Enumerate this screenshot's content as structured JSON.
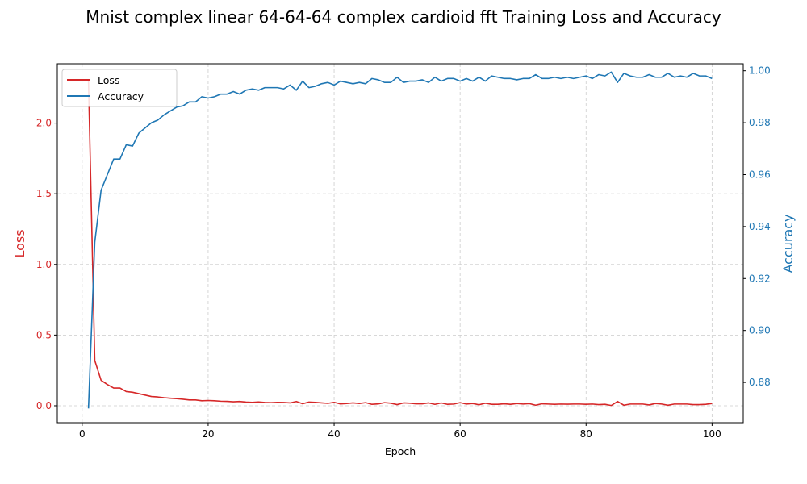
{
  "chart_data": {
    "type": "line",
    "title": "Mnist complex linear 64-64-64 complex cardioid fft Training Loss and Accuracy",
    "xlabel": "Epoch",
    "ylabel_left": "Loss",
    "ylabel_right": "Accuracy",
    "xlim": [
      -3.95,
      104.95
    ],
    "ylim_left": [
      -0.12,
      2.42
    ],
    "ylim_right": [
      0.8645,
      1.0027
    ],
    "x_ticks": [
      0,
      20,
      40,
      60,
      80,
      100
    ],
    "y_ticks_left": [
      0.0,
      0.5,
      1.0,
      1.5,
      2.0
    ],
    "y_ticks_right": [
      0.88,
      0.9,
      0.92,
      0.94,
      0.96,
      0.98,
      1.0
    ],
    "grid": true,
    "legend_position": "upper-left",
    "colors": {
      "loss": "#d62728",
      "accuracy": "#1f77b4",
      "grid": "#cccccc"
    },
    "series": [
      {
        "name": "Loss",
        "axis": "left",
        "values": [
          2.3,
          0.32,
          0.18,
          0.15,
          0.125,
          0.125,
          0.1,
          0.095,
          0.085,
          0.075,
          0.065,
          0.062,
          0.057,
          0.053,
          0.05,
          0.046,
          0.041,
          0.041,
          0.035,
          0.037,
          0.035,
          0.032,
          0.031,
          0.028,
          0.03,
          0.026,
          0.024,
          0.027,
          0.023,
          0.022,
          0.024,
          0.023,
          0.02,
          0.03,
          0.014,
          0.026,
          0.024,
          0.02,
          0.017,
          0.024,
          0.013,
          0.016,
          0.02,
          0.016,
          0.022,
          0.01,
          0.013,
          0.022,
          0.018,
          0.008,
          0.02,
          0.018,
          0.014,
          0.014,
          0.02,
          0.01,
          0.02,
          0.01,
          0.012,
          0.022,
          0.012,
          0.016,
          0.007,
          0.018,
          0.01,
          0.01,
          0.014,
          0.01,
          0.016,
          0.012,
          0.015,
          0.004,
          0.014,
          0.012,
          0.01,
          0.012,
          0.011,
          0.012,
          0.012,
          0.01,
          0.012,
          0.008,
          0.01,
          0.002,
          0.03,
          0.004,
          0.012,
          0.012,
          0.012,
          0.006,
          0.016,
          0.012,
          0.004,
          0.012,
          0.012,
          0.012,
          0.008,
          0.008,
          0.01,
          0.016
        ]
      },
      {
        "name": "Accuracy",
        "axis": "right",
        "values": [
          0.87,
          0.934,
          0.954,
          0.96,
          0.966,
          0.966,
          0.9715,
          0.971,
          0.976,
          0.978,
          0.98,
          0.981,
          0.983,
          0.9845,
          0.986,
          0.9865,
          0.988,
          0.988,
          0.99,
          0.9895,
          0.99,
          0.991,
          0.991,
          0.992,
          0.991,
          0.9925,
          0.993,
          0.9925,
          0.9935,
          0.9935,
          0.9935,
          0.993,
          0.9945,
          0.9925,
          0.996,
          0.9935,
          0.994,
          0.995,
          0.9955,
          0.9945,
          0.996,
          0.9955,
          0.995,
          0.9955,
          0.995,
          0.997,
          0.9965,
          0.9955,
          0.9955,
          0.9975,
          0.9955,
          0.996,
          0.996,
          0.9965,
          0.9955,
          0.9975,
          0.996,
          0.997,
          0.997,
          0.996,
          0.997,
          0.996,
          0.9975,
          0.996,
          0.998,
          0.9975,
          0.997,
          0.997,
          0.9965,
          0.997,
          0.997,
          0.9985,
          0.997,
          0.997,
          0.9975,
          0.997,
          0.9975,
          0.997,
          0.9975,
          0.998,
          0.997,
          0.9985,
          0.998,
          0.9995,
          0.9955,
          0.999,
          0.998,
          0.9975,
          0.9975,
          0.9985,
          0.9975,
          0.9975,
          0.999,
          0.9975,
          0.998,
          0.9975,
          0.999,
          0.998,
          0.998,
          0.997
        ]
      }
    ]
  }
}
